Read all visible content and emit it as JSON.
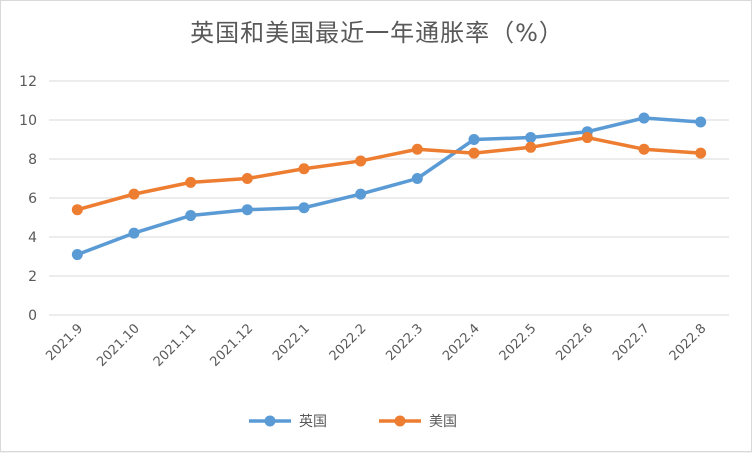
{
  "chart_data": {
    "type": "line",
    "title": "英国和美国最近一年通胀率（%）",
    "categories": [
      "2021.9",
      "2021.10",
      "2021.11",
      "2021.12",
      "2022.1",
      "2022.2",
      "2022.3",
      "2022.4",
      "2022.5",
      "2022.6",
      "2022.7",
      "2022.8"
    ],
    "series": [
      {
        "name": "英国",
        "color": "#5b9bd5",
        "values": [
          3.1,
          4.2,
          5.1,
          5.4,
          5.5,
          6.2,
          7.0,
          9.0,
          9.1,
          9.4,
          10.1,
          9.9
        ]
      },
      {
        "name": "美国",
        "color": "#ed7d31",
        "values": [
          5.4,
          6.2,
          6.8,
          7.0,
          7.5,
          7.9,
          8.5,
          8.3,
          8.6,
          9.1,
          8.5,
          8.3
        ]
      }
    ],
    "ylim": [
      0,
      12
    ],
    "yticks": [
      0,
      2,
      4,
      6,
      8,
      10,
      12
    ],
    "grid": true,
    "legend_position": "bottom"
  }
}
